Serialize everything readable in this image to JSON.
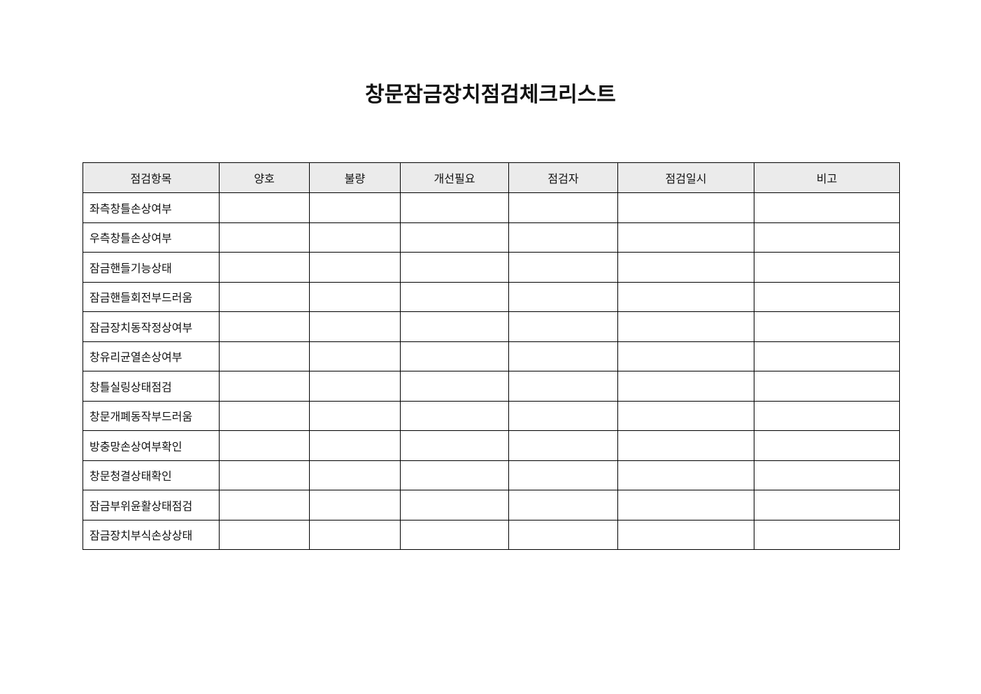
{
  "title": "창문잠금장치점검체크리스트",
  "table": {
    "headers": [
      "점검항목",
      "양호",
      "불량",
      "개선필요",
      "점검자",
      "점검일시",
      "비고"
    ],
    "items": [
      "좌측창틀손상여부",
      "우측창틀손상여부",
      "잠금핸들기능상태",
      "잠금핸들회전부드러움",
      "잠금장치동작정상여부",
      "창유리균열손상여부",
      "창틀실링상태점검",
      "창문개폐동작부드러움",
      "방충망손상여부확인",
      "창문청결상태확인",
      "잠금부위윤활상태점검",
      "잠금장치부식손상상태"
    ]
  }
}
